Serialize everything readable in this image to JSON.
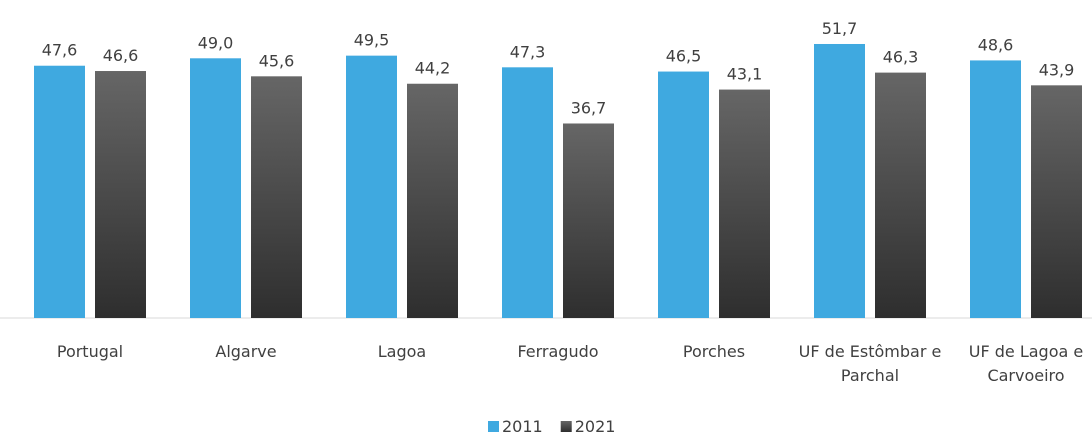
{
  "chart_data": {
    "type": "bar",
    "categories": [
      "Portugal",
      "Algarve",
      "Lagoa",
      "Ferragudo",
      "Porches",
      "UF de Estômbar e Parchal",
      "UF de Lagoa e Carvoeiro"
    ],
    "series": [
      {
        "name": "2011",
        "color": "#3fa9e0",
        "values": [
          47.6,
          49.0,
          49.5,
          47.3,
          46.5,
          51.7,
          48.6
        ],
        "value_labels": [
          "47,6",
          "49,0",
          "49,5",
          "47,3",
          "46,5",
          "51,7",
          "48,6"
        ]
      },
      {
        "name": "2021",
        "color": "#4a4a4a",
        "values": [
          46.6,
          45.6,
          44.2,
          36.7,
          43.1,
          46.3,
          43.9
        ],
        "value_labels": [
          "46,6",
          "45,6",
          "44,2",
          "36,7",
          "43,1",
          "46,3",
          "43,9"
        ]
      }
    ],
    "ylim": [
      0,
      60
    ],
    "legend": "bottom"
  }
}
